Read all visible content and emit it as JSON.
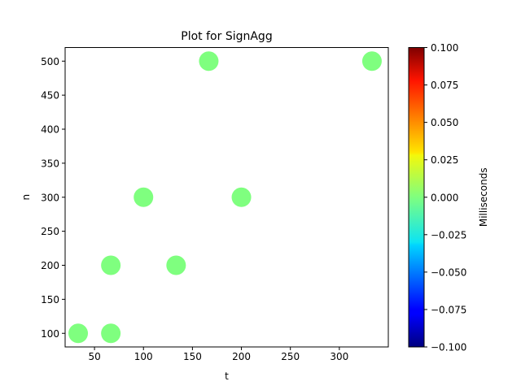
{
  "chart_data": {
    "type": "scatter",
    "title": "Plot for SignAgg",
    "xlabel": "t",
    "ylabel": "n",
    "xlim": [
      20,
      350
    ],
    "ylim": [
      80,
      520
    ],
    "xticks": [
      50,
      100,
      150,
      200,
      250,
      300
    ],
    "yticks": [
      100,
      150,
      200,
      250,
      300,
      350,
      400,
      450,
      500
    ],
    "grid": false,
    "points": [
      {
        "x": 33.33,
        "y": 100,
        "value": 0
      },
      {
        "x": 66.67,
        "y": 100,
        "value": 0
      },
      {
        "x": 66.67,
        "y": 200,
        "value": 0
      },
      {
        "x": 100,
        "y": 300,
        "value": 0
      },
      {
        "x": 133.33,
        "y": 200,
        "value": 0
      },
      {
        "x": 166.67,
        "y": 500,
        "value": 0
      },
      {
        "x": 200,
        "y": 300,
        "value": 0
      },
      {
        "x": 333.33,
        "y": 500,
        "value": 0
      }
    ],
    "point_color": "#7fff7f",
    "colorbar": {
      "label": "Milliseconds",
      "colormap": "jet",
      "range": [
        -0.1,
        0.1
      ],
      "ticks": [
        "0.100",
        "0.075",
        "0.050",
        "0.025",
        "0.000",
        "−0.025",
        "−0.050",
        "−0.075",
        "−0.100"
      ],
      "tick_values": [
        0.1,
        0.075,
        0.05,
        0.025,
        0,
        -0.025,
        -0.05,
        -0.075,
        -0.1
      ]
    }
  }
}
